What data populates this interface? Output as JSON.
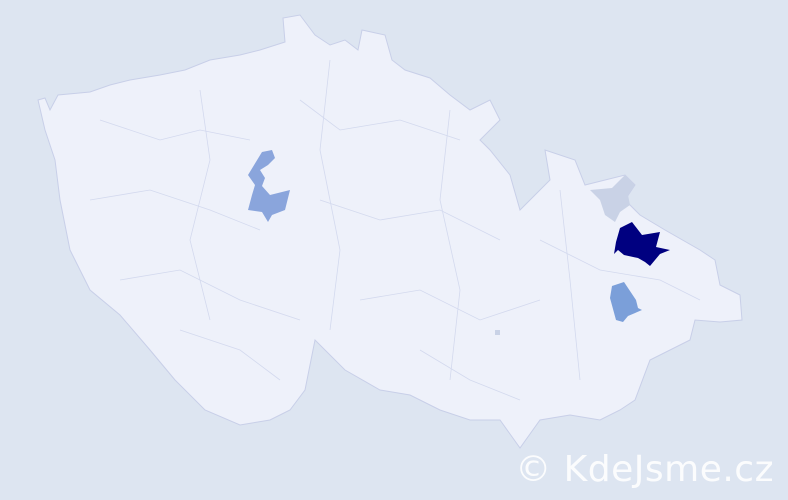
{
  "map": {
    "background_color": "#dde5f1",
    "country_fill": "#eef1fa",
    "border_color": "#c8cfe8",
    "highlighted_regions": [
      {
        "name": "region-central",
        "color": "#8aa5dc"
      },
      {
        "name": "region-northeast-light",
        "color": "#c9d2e6"
      },
      {
        "name": "region-northeast-dark",
        "color": "#000080"
      },
      {
        "name": "region-east-medium",
        "color": "#7b9fd9"
      },
      {
        "name": "region-south-small",
        "color": "#c9d2e6"
      }
    ]
  },
  "watermark": {
    "text": "© KdeJsme.cz"
  }
}
